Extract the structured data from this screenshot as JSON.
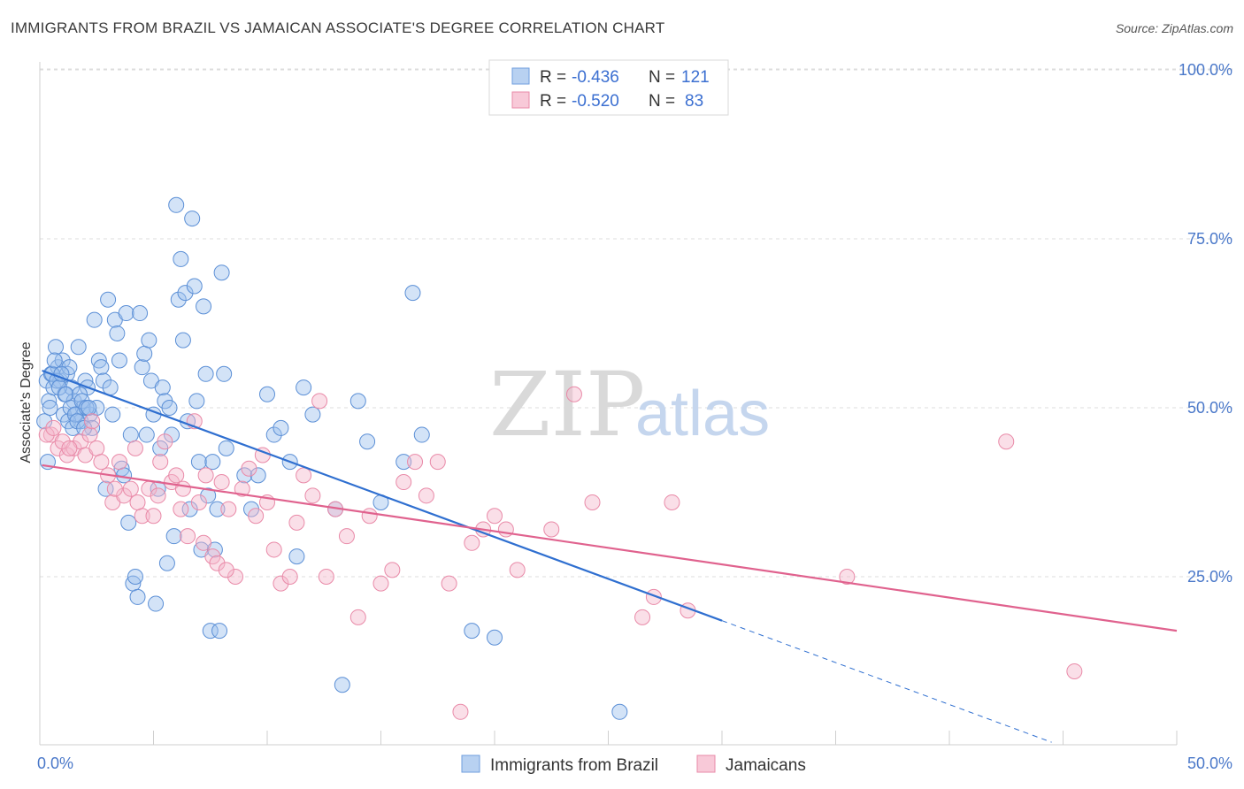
{
  "title": "IMMIGRANTS FROM BRAZIL VS JAMAICAN ASSOCIATE'S DEGREE CORRELATION CHART",
  "source": "Source: ZipAtlas.com",
  "watermark": {
    "zip": "ZIP",
    "atlas": "atlas"
  },
  "colors": {
    "blue_fill": "#9dc0ee",
    "blue_stroke": "#5b8fd6",
    "blue_line": "#2f6fd0",
    "pink_fill": "#f5b8cb",
    "pink_stroke": "#e98aa8",
    "pink_line": "#e0628e",
    "grid": "#dddddd",
    "tick_label": "#4a78c9"
  },
  "legend": {
    "rows": [
      {
        "r_label": "R =",
        "r_value": "-0.436",
        "n_label": "N =",
        "n_value": "121"
      },
      {
        "r_label": "R =",
        "r_value": "-0.520",
        "n_label": "N =",
        "n_value": "83"
      }
    ]
  },
  "chart_data": {
    "type": "scatter",
    "title": "IMMIGRANTS FROM BRAZIL VS JAMAICAN ASSOCIATE'S DEGREE CORRELATION CHART",
    "xlabel": "",
    "ylabel": "Associate's Degree",
    "xlim": [
      0,
      50
    ],
    "ylim": [
      0,
      105
    ],
    "x_tick_labels": [
      "0.0%",
      "50.0%"
    ],
    "y_ticks": [
      25,
      50,
      75,
      100
    ],
    "y_tick_labels": [
      "25.0%",
      "50.0%",
      "75.0%",
      "100.0%"
    ],
    "grid": true,
    "legend_position": "top-center",
    "series": [
      {
        "name": "Immigrants from Brazil",
        "color": "#9dc0ee",
        "trend": {
          "x": [
            0.1,
            30.0
          ],
          "y": [
            55.5,
            18.5
          ],
          "dashed_to": [
            44.5,
            0.5
          ]
        },
        "points": [
          [
            0.3,
            54
          ],
          [
            0.4,
            51
          ],
          [
            0.5,
            55
          ],
          [
            0.6,
            53
          ],
          [
            0.7,
            59
          ],
          [
            0.8,
            56
          ],
          [
            0.9,
            54
          ],
          [
            1.0,
            57
          ],
          [
            1.1,
            52
          ],
          [
            1.2,
            55
          ],
          [
            1.3,
            56
          ],
          [
            1.4,
            53
          ],
          [
            1.5,
            51
          ],
          [
            1.6,
            49
          ],
          [
            1.7,
            59
          ],
          [
            1.8,
            48
          ],
          [
            1.9,
            50
          ],
          [
            2.0,
            54
          ],
          [
            2.1,
            53
          ],
          [
            2.2,
            49
          ],
          [
            2.3,
            47
          ],
          [
            2.4,
            63
          ],
          [
            2.5,
            50
          ],
          [
            2.6,
            57
          ],
          [
            2.7,
            56
          ],
          [
            2.8,
            54
          ],
          [
            2.9,
            38
          ],
          [
            3.0,
            66
          ],
          [
            3.1,
            53
          ],
          [
            3.2,
            49
          ],
          [
            3.3,
            63
          ],
          [
            3.4,
            61
          ],
          [
            3.5,
            57
          ],
          [
            3.6,
            41
          ],
          [
            3.7,
            40
          ],
          [
            3.8,
            64
          ],
          [
            3.9,
            33
          ],
          [
            4.0,
            46
          ],
          [
            4.1,
            24
          ],
          [
            4.2,
            25
          ],
          [
            4.3,
            22
          ],
          [
            4.4,
            64
          ],
          [
            4.5,
            56
          ],
          [
            4.6,
            58
          ],
          [
            4.7,
            46
          ],
          [
            4.8,
            60
          ],
          [
            4.9,
            54
          ],
          [
            5.0,
            49
          ],
          [
            5.1,
            21
          ],
          [
            5.2,
            38
          ],
          [
            5.3,
            44
          ],
          [
            5.4,
            53
          ],
          [
            5.5,
            51
          ],
          [
            5.6,
            27
          ],
          [
            5.7,
            50
          ],
          [
            5.8,
            46
          ],
          [
            5.9,
            31
          ],
          [
            6.0,
            80
          ],
          [
            6.1,
            66
          ],
          [
            6.2,
            72
          ],
          [
            6.3,
            60
          ],
          [
            6.4,
            67
          ],
          [
            6.5,
            48
          ],
          [
            6.6,
            35
          ],
          [
            6.7,
            78
          ],
          [
            6.8,
            68
          ],
          [
            6.9,
            51
          ],
          [
            7.0,
            42
          ],
          [
            7.1,
            29
          ],
          [
            7.2,
            65
          ],
          [
            7.3,
            55
          ],
          [
            7.4,
            37
          ],
          [
            7.5,
            17
          ],
          [
            7.6,
            42
          ],
          [
            7.7,
            29
          ],
          [
            7.8,
            35
          ],
          [
            7.9,
            17
          ],
          [
            8.0,
            70
          ],
          [
            8.1,
            55
          ],
          [
            8.2,
            44
          ],
          [
            9.0,
            40
          ],
          [
            9.3,
            35
          ],
          [
            9.6,
            40
          ],
          [
            10.0,
            52
          ],
          [
            10.3,
            46
          ],
          [
            10.6,
            47
          ],
          [
            11.0,
            42
          ],
          [
            11.3,
            28
          ],
          [
            11.6,
            53
          ],
          [
            12.0,
            49
          ],
          [
            13.0,
            35
          ],
          [
            13.3,
            9
          ],
          [
            14.0,
            51
          ],
          [
            14.4,
            45
          ],
          [
            15.0,
            36
          ],
          [
            16.0,
            42
          ],
          [
            16.4,
            67
          ],
          [
            16.8,
            46
          ],
          [
            19.0,
            17
          ],
          [
            20.0,
            16
          ],
          [
            25.5,
            5
          ],
          [
            0.2,
            48
          ],
          [
            0.35,
            42
          ],
          [
            0.45,
            50
          ],
          [
            0.55,
            55
          ],
          [
            0.65,
            57
          ],
          [
            0.75,
            54
          ],
          [
            0.85,
            53
          ],
          [
            0.95,
            55
          ],
          [
            1.05,
            49
          ],
          [
            1.15,
            52
          ],
          [
            1.25,
            48
          ],
          [
            1.35,
            50
          ],
          [
            1.45,
            47
          ],
          [
            1.55,
            49
          ],
          [
            1.65,
            48
          ],
          [
            1.75,
            52
          ],
          [
            1.85,
            51
          ],
          [
            1.95,
            47
          ],
          [
            2.05,
            50
          ],
          [
            2.15,
            50
          ]
        ]
      },
      {
        "name": "Jamaicans",
        "color": "#f5b8cb",
        "trend": {
          "x": [
            0.1,
            50.0
          ],
          "y": [
            41.5,
            17.0
          ]
        },
        "points": [
          [
            0.5,
            46
          ],
          [
            0.8,
            44
          ],
          [
            1.0,
            45
          ],
          [
            1.2,
            43
          ],
          [
            1.5,
            44
          ],
          [
            1.8,
            45
          ],
          [
            2.0,
            43
          ],
          [
            2.2,
            46
          ],
          [
            2.5,
            44
          ],
          [
            2.7,
            42
          ],
          [
            3.0,
            40
          ],
          [
            3.2,
            36
          ],
          [
            3.5,
            42
          ],
          [
            3.7,
            37
          ],
          [
            4.0,
            38
          ],
          [
            4.2,
            44
          ],
          [
            4.5,
            34
          ],
          [
            4.8,
            38
          ],
          [
            5.0,
            34
          ],
          [
            5.3,
            42
          ],
          [
            5.5,
            45
          ],
          [
            5.8,
            39
          ],
          [
            6.0,
            40
          ],
          [
            6.3,
            38
          ],
          [
            6.5,
            31
          ],
          [
            6.8,
            48
          ],
          [
            7.0,
            36
          ],
          [
            7.3,
            40
          ],
          [
            7.6,
            28
          ],
          [
            7.8,
            27
          ],
          [
            8.0,
            39
          ],
          [
            8.3,
            35
          ],
          [
            8.6,
            25
          ],
          [
            8.9,
            38
          ],
          [
            9.2,
            41
          ],
          [
            9.5,
            34
          ],
          [
            9.8,
            43
          ],
          [
            10.0,
            36
          ],
          [
            10.3,
            29
          ],
          [
            10.6,
            24
          ],
          [
            11.0,
            25
          ],
          [
            11.3,
            33
          ],
          [
            11.6,
            40
          ],
          [
            12.0,
            37
          ],
          [
            12.3,
            51
          ],
          [
            12.6,
            25
          ],
          [
            13.0,
            35
          ],
          [
            13.5,
            31
          ],
          [
            14.0,
            19
          ],
          [
            14.5,
            34
          ],
          [
            15.0,
            24
          ],
          [
            15.5,
            26
          ],
          [
            16.0,
            39
          ],
          [
            16.5,
            42
          ],
          [
            17.0,
            37
          ],
          [
            17.5,
            42
          ],
          [
            18.0,
            24
          ],
          [
            18.5,
            5
          ],
          [
            19.0,
            30
          ],
          [
            19.5,
            32
          ],
          [
            20.0,
            34
          ],
          [
            20.5,
            32
          ],
          [
            21.0,
            26
          ],
          [
            22.5,
            32
          ],
          [
            23.5,
            52
          ],
          [
            24.3,
            36
          ],
          [
            26.5,
            19
          ],
          [
            27.0,
            22
          ],
          [
            27.8,
            36
          ],
          [
            28.5,
            20
          ],
          [
            35.5,
            25
          ],
          [
            42.5,
            45
          ],
          [
            45.5,
            11
          ],
          [
            0.3,
            46
          ],
          [
            0.6,
            47
          ],
          [
            1.3,
            44
          ],
          [
            2.3,
            48
          ],
          [
            3.3,
            38
          ],
          [
            4.3,
            36
          ],
          [
            5.2,
            37
          ],
          [
            6.2,
            35
          ],
          [
            7.2,
            30
          ],
          [
            8.2,
            26
          ]
        ]
      }
    ]
  },
  "bottom_legend": [
    {
      "label": "Immigrants from Brazil"
    },
    {
      "label": "Jamaicans"
    }
  ]
}
